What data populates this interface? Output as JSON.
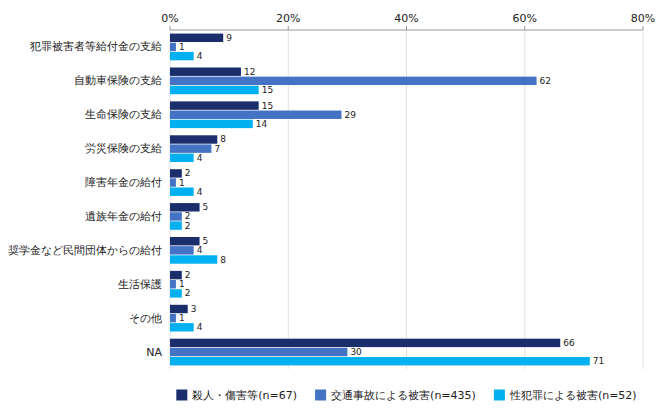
{
  "chart_data": {
    "type": "bar",
    "orientation": "horizontal",
    "categories": [
      "犯罪被害者等給付金の支給",
      "自動車保険の支給",
      "生命保険の支給",
      "労災保険の支給",
      "障害年金の給付",
      "遺族年金の給付",
      "奨学金など民間団体からの給付",
      "生活保護",
      "その他",
      "NA"
    ],
    "series": [
      {
        "name": "殺人・傷害等(n=67)",
        "color": "#1a2e6c",
        "values": [
          9,
          12,
          15,
          8,
          2,
          5,
          5,
          2,
          3,
          66
        ]
      },
      {
        "name": "交通事故による被害(n=435)",
        "color": "#4472c4",
        "values": [
          1,
          62,
          29,
          7,
          1,
          2,
          4,
          1,
          1,
          30
        ]
      },
      {
        "name": "性犯罪による被害(n=52)",
        "color": "#00b0f0",
        "values": [
          4,
          15,
          14,
          4,
          4,
          2,
          8,
          2,
          4,
          71
        ]
      }
    ],
    "xlim": [
      0,
      80
    ],
    "xticks": [
      {
        "value": 0,
        "label": "0%"
      },
      {
        "value": 20,
        "label": "20%"
      },
      {
        "value": 40,
        "label": "40%"
      },
      {
        "value": 60,
        "label": "60%"
      },
      {
        "value": 80,
        "label": "80%"
      }
    ],
    "grid": true,
    "legend": "bottom",
    "data_labels": true
  }
}
